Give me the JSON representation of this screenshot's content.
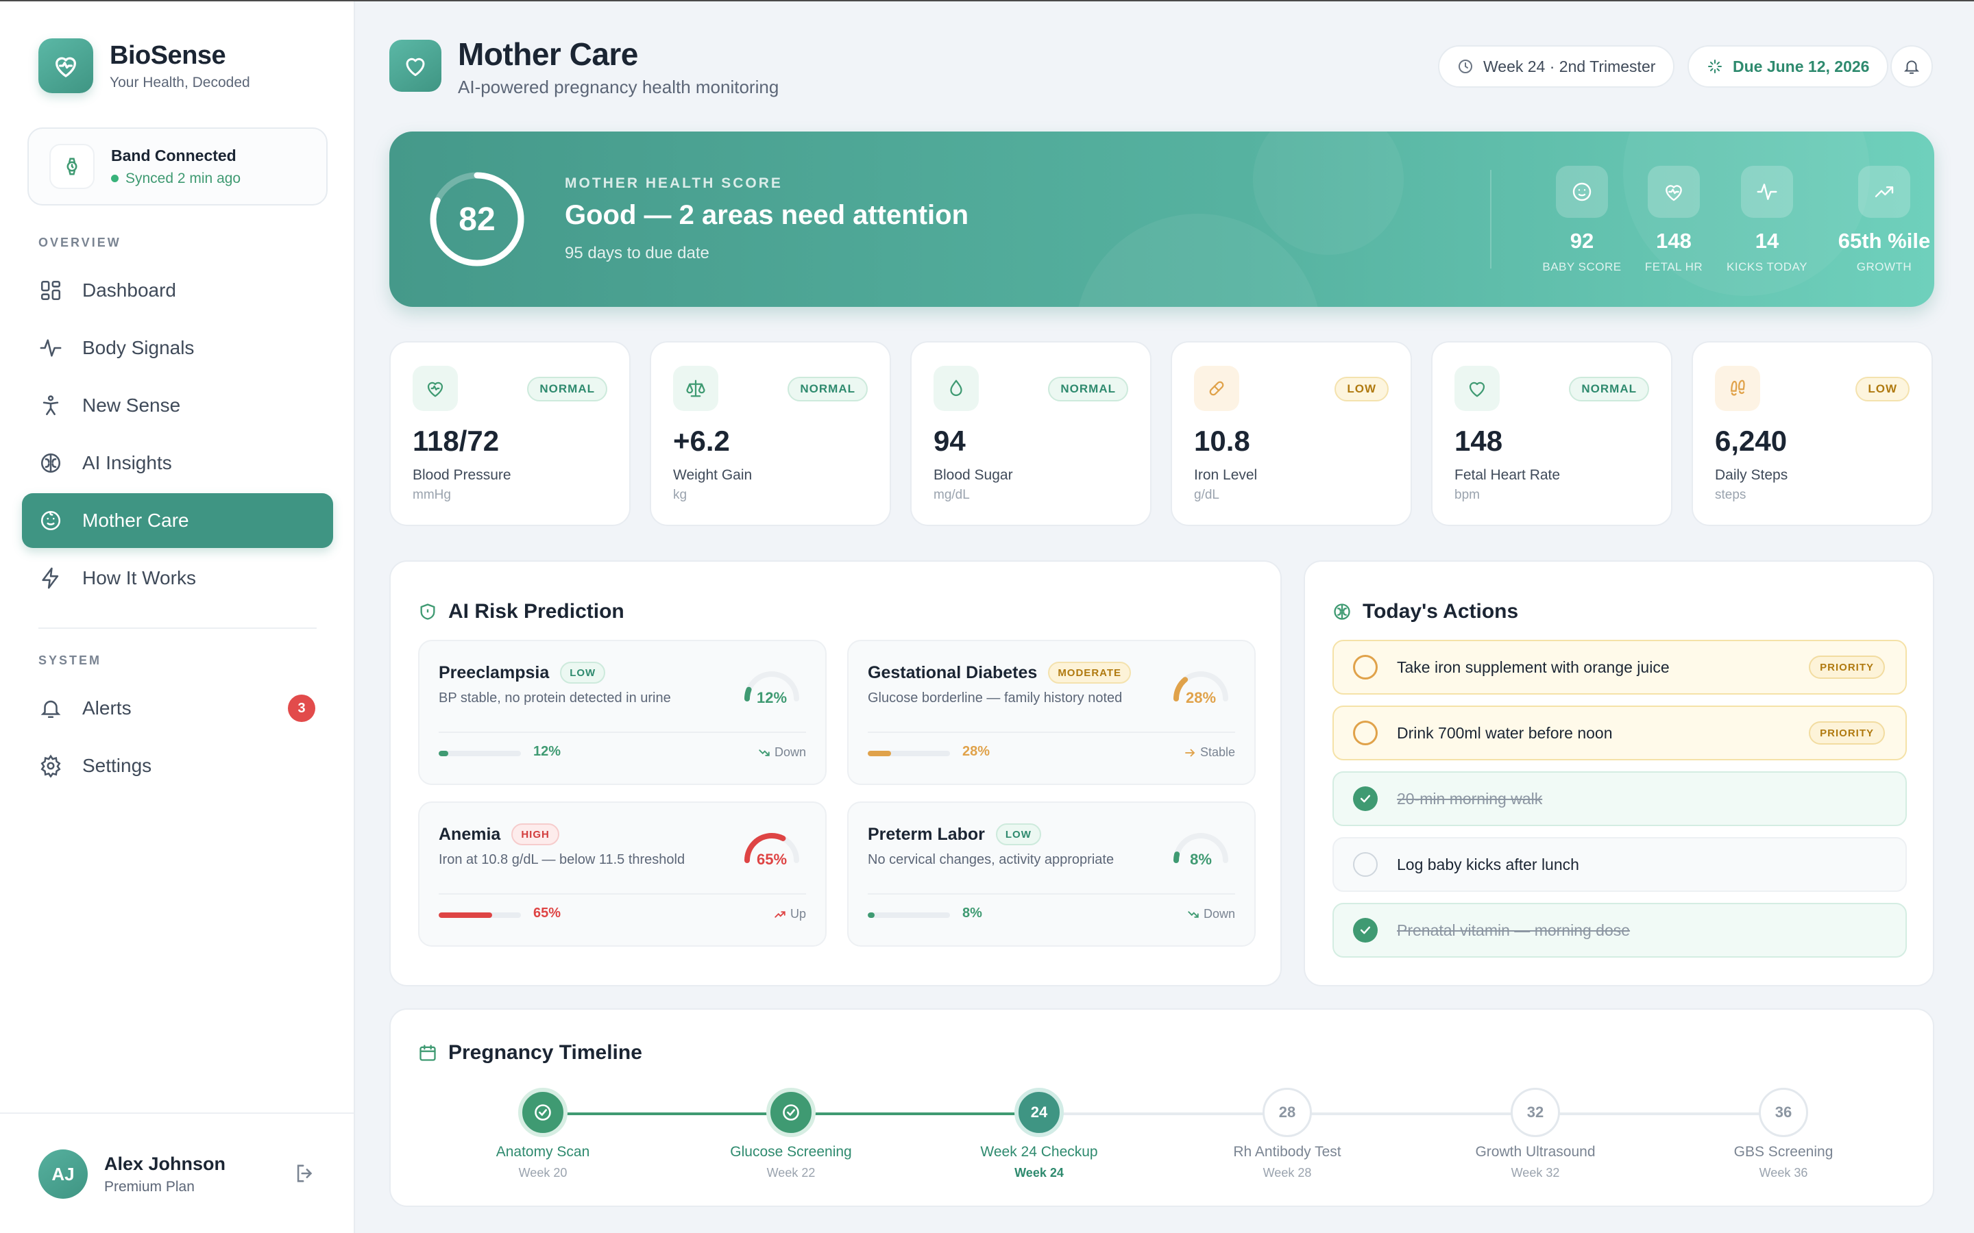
{
  "brand": {
    "name": "BioSense",
    "tagline": "Your Health, Decoded"
  },
  "band": {
    "title": "Band Connected",
    "status": "Synced 2 min ago"
  },
  "nav": {
    "overview_label": "OVERVIEW",
    "items": [
      {
        "label": "Dashboard",
        "icon": "grid-icon"
      },
      {
        "label": "Body Signals",
        "icon": "pulse-icon"
      },
      {
        "label": "New Sense",
        "icon": "person-icon"
      },
      {
        "label": "AI Insights",
        "icon": "brain-icon"
      },
      {
        "label": "Mother Care",
        "icon": "baby-icon",
        "active": true
      },
      {
        "label": "How It Works",
        "icon": "bolt-icon"
      }
    ],
    "system_label": "SYSTEM",
    "alerts": {
      "label": "Alerts",
      "count": "3"
    },
    "settings": {
      "label": "Settings"
    }
  },
  "user": {
    "initials": "AJ",
    "name": "Alex Johnson",
    "plan": "Premium Plan"
  },
  "header": {
    "title": "Mother Care",
    "subtitle": "AI-powered pregnancy health monitoring",
    "week_pill": "Week 24 · 2nd Trimester",
    "due_pill": "Due June 12, 2026"
  },
  "hero": {
    "score": "82",
    "score_fraction": 0.82,
    "kicker": "MOTHER HEALTH SCORE",
    "title": "Good — 2 areas need attention",
    "subtitle": "95 days to due date",
    "stats": [
      {
        "value": "92",
        "label": "BABY SCORE",
        "icon": "baby-face-icon"
      },
      {
        "value": "148",
        "label": "FETAL HR",
        "icon": "heart-pulse-icon"
      },
      {
        "value": "14",
        "label": "KICKS TODAY",
        "icon": "activity-icon"
      },
      {
        "value": "65th %ile",
        "label": "GROWTH",
        "icon": "trending-up-icon"
      }
    ]
  },
  "metrics": [
    {
      "value": "118/72",
      "name": "Blood Pressure",
      "unit": "mmHg",
      "status": "NORMAL",
      "icon": "heart-pulse-icon",
      "color": "#3f9a72"
    },
    {
      "value": "+6.2",
      "name": "Weight Gain",
      "unit": "kg",
      "status": "NORMAL",
      "icon": "scale-icon",
      "color": "#3f9a72"
    },
    {
      "value": "94",
      "name": "Blood Sugar",
      "unit": "mg/dL",
      "status": "NORMAL",
      "icon": "droplet-icon",
      "color": "#3f9a72"
    },
    {
      "value": "10.8",
      "name": "Iron Level",
      "unit": "g/dL",
      "status": "LOW",
      "icon": "pill-icon",
      "color": "#e0a24a"
    },
    {
      "value": "148",
      "name": "Fetal Heart Rate",
      "unit": "bpm",
      "status": "NORMAL",
      "icon": "heart-icon",
      "color": "#3f9a72"
    },
    {
      "value": "6,240",
      "name": "Daily Steps",
      "unit": "steps",
      "status": "LOW",
      "icon": "footprints-icon",
      "color": "#e0a24a"
    }
  ],
  "risk": {
    "title": "AI Risk Prediction",
    "items": [
      {
        "name": "Preeclampsia",
        "level": "LOW",
        "desc": "BP stable, no protein detected in urine",
        "pct": "12%",
        "value": 0.12,
        "trend": "Down",
        "color": "#3f9a72"
      },
      {
        "name": "Gestational Diabetes",
        "level": "MODERATE",
        "desc": "Glucose borderline — family history noted",
        "pct": "28%",
        "value": 0.28,
        "trend": "Stable",
        "color": "#e0a24a"
      },
      {
        "name": "Anemia",
        "level": "HIGH",
        "desc": "Iron at 10.8 g/dL — below 11.5 threshold",
        "pct": "65%",
        "value": 0.65,
        "trend": "Up",
        "color": "#de4444"
      },
      {
        "name": "Preterm Labor",
        "level": "LOW",
        "desc": "No cervical changes, activity appropriate",
        "pct": "8%",
        "value": 0.08,
        "trend": "Down",
        "color": "#3f9a72"
      }
    ]
  },
  "actions": {
    "title": "Today's Actions",
    "items": [
      {
        "text": "Take iron supplement with orange juice",
        "state": "priority",
        "tag": "PRIORITY"
      },
      {
        "text": "Drink 700ml water before noon",
        "state": "priority",
        "tag": "PRIORITY"
      },
      {
        "text": "20-min morning walk",
        "state": "done",
        "tag": ""
      },
      {
        "text": "Log baby kicks after lunch",
        "state": "plain",
        "tag": ""
      },
      {
        "text": "Prenatal vitamin — morning dose",
        "state": "done",
        "tag": ""
      }
    ]
  },
  "timeline": {
    "title": "Pregnancy Timeline",
    "items": [
      {
        "num": "",
        "name": "Anatomy Scan",
        "week": "Week 20",
        "state": "done"
      },
      {
        "num": "",
        "name": "Glucose Screening",
        "week": "Week 22",
        "state": "done"
      },
      {
        "num": "24",
        "name": "Week 24 Checkup",
        "week": "Week 24",
        "state": "current"
      },
      {
        "num": "28",
        "name": "Rh Antibody Test",
        "week": "Week 28",
        "state": "future"
      },
      {
        "num": "32",
        "name": "Growth Ultrasound",
        "week": "Week 32",
        "state": "future"
      },
      {
        "num": "36",
        "name": "GBS Screening",
        "week": "Week 36",
        "state": "future"
      }
    ]
  }
}
